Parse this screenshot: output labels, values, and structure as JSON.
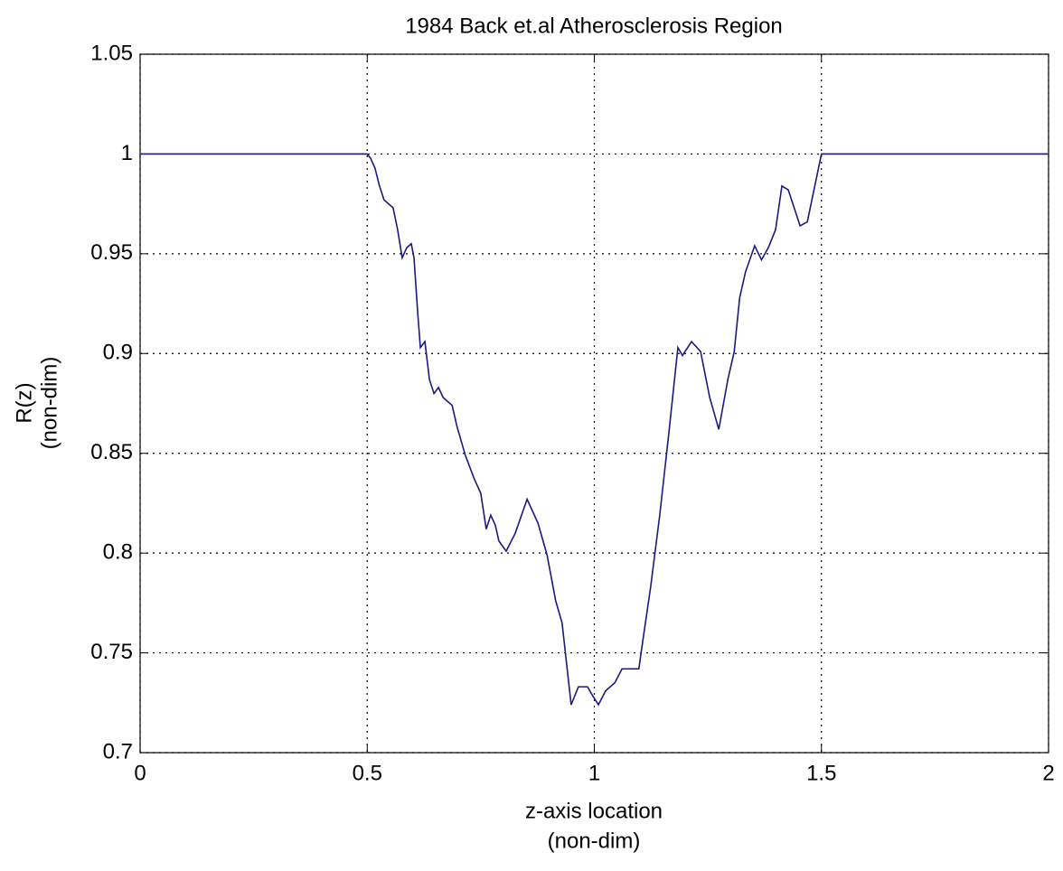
{
  "chart_data": {
    "type": "line",
    "title": "1984 Back et.al Atherosclerosis Region",
    "x_label": [
      "z-axis location",
      "(non-dim)"
    ],
    "y_label": [
      "R(z)",
      "(non-dim)"
    ],
    "series": [
      {
        "color": "#1a1a80",
        "x": [
          0,
          0.5,
          0.507,
          0.517,
          0.527,
          0.537,
          0.547,
          0.557,
          0.567,
          0.577,
          0.587,
          0.597,
          0.603,
          0.611,
          0.617,
          0.627,
          0.637,
          0.647,
          0.657,
          0.667,
          0.687,
          0.697,
          0.716,
          0.736,
          0.75,
          0.762,
          0.772,
          0.782,
          0.79,
          0.806,
          0.826,
          0.852,
          0.876,
          0.896,
          0.915,
          0.929,
          0.949,
          0.965,
          0.985,
          0.995,
          1.009,
          1.025,
          1.045,
          1.061,
          1.085,
          1.098,
          1.108,
          1.124,
          1.144,
          1.164,
          1.184,
          1.194,
          1.214,
          1.234,
          1.254,
          1.274,
          1.294,
          1.308,
          1.32,
          1.333,
          1.353,
          1.368,
          1.383,
          1.399,
          1.413,
          1.427,
          1.453,
          1.469,
          1.5,
          2
        ],
        "values": [
          1,
          1,
          0.998,
          0.993,
          0.984,
          0.977,
          0.975,
          0.973,
          0.962,
          0.948,
          0.953,
          0.955,
          0.948,
          0.921,
          0.903,
          0.906,
          0.887,
          0.88,
          0.883,
          0.878,
          0.874,
          0.864,
          0.849,
          0.837,
          0.83,
          0.812,
          0.819,
          0.814,
          0.806,
          0.801,
          0.81,
          0.827,
          0.815,
          0.799,
          0.776,
          0.765,
          0.724,
          0.733,
          0.733,
          0.729,
          0.724,
          0.731,
          0.735,
          0.742,
          0.742,
          0.742,
          0.758,
          0.783,
          0.819,
          0.86,
          0.903,
          0.899,
          0.906,
          0.901,
          0.878,
          0.862,
          0.887,
          0.901,
          0.928,
          0.941,
          0.954,
          0.947,
          0.953,
          0.962,
          0.984,
          0.982,
          0.964,
          0.966,
          1,
          1
        ]
      }
    ],
    "xlim": [
      0,
      2
    ],
    "xticks": [
      0,
      0.5,
      1,
      1.5,
      2
    ],
    "ylim": [
      0.7,
      1.05
    ],
    "yticks": [
      0.7,
      0.75,
      0.8,
      0.85,
      0.9,
      0.95,
      1,
      1.05
    ],
    "grid": true
  }
}
